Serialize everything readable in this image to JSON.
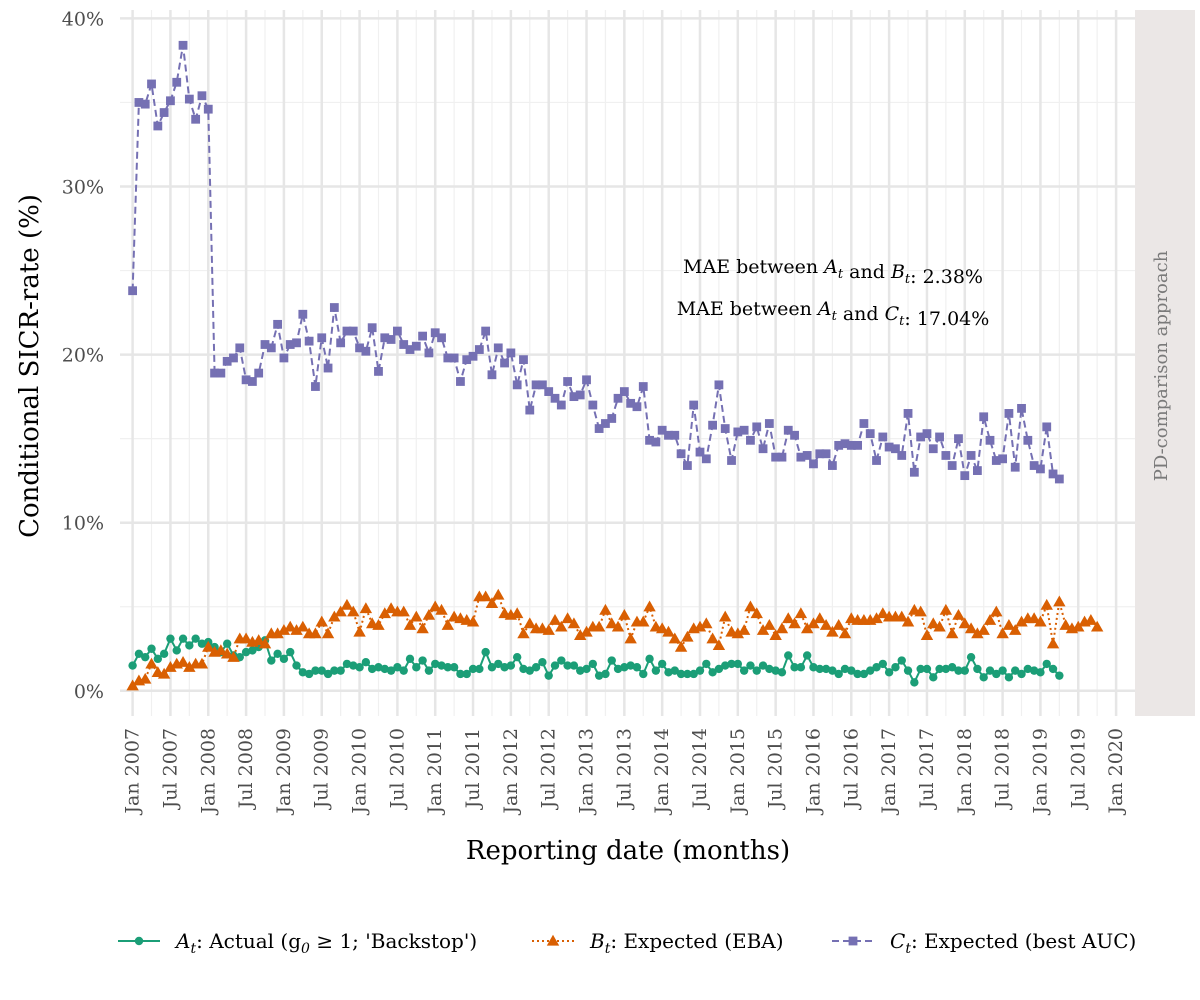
{
  "chart_data": {
    "type": "line",
    "facet_label": "PD-comparison approach",
    "xlabel": "Reporting date (months)",
    "ylabel": "Conditional SICR-rate (%)",
    "x_ticks": [
      "Jan 2007",
      "Jul 2007",
      "Jan 2008",
      "Jul 2008",
      "Jan 2009",
      "Jul 2009",
      "Jan 2010",
      "Jul 2010",
      "Jan 2011",
      "Jul 2011",
      "Jan 2012",
      "Jul 2012",
      "Jan 2013",
      "Jul 2013",
      "Jan 2014",
      "Jul 2014",
      "Jan 2015",
      "Jul 2015",
      "Jan 2016",
      "Jul 2016",
      "Jan 2017",
      "Jul 2017",
      "Jan 2018",
      "Jul 2018",
      "Jan 2019",
      "Jul 2019",
      "Jan 2020"
    ],
    "y_ticks": [
      "0%",
      "10%",
      "20%",
      "30%",
      "40%"
    ],
    "xlim": [
      "2006-11",
      "2020-04"
    ],
    "ylim": [
      -1.5,
      40.5
    ],
    "grid": true,
    "legend_position": "bottom",
    "start_month": "2007-01",
    "annotations": [
      {
        "line1_pre": "MAE between ",
        "var1": "A",
        "mid": " and ",
        "var2": "B",
        "post": ": 2.38%"
      },
      {
        "line1_pre": "MAE between ",
        "var1": "A",
        "mid": " and ",
        "var2": "C",
        "post": ": 17.04%"
      }
    ],
    "series": [
      {
        "name": "Actual",
        "legend_var": "A",
        "legend_text": ": Actual (g",
        "legend_tail": " ≥ 1; 'Backstop')",
        "color": "#1B9E77",
        "marker": "circle",
        "dash": "solid",
        "values": [
          1.5,
          2.2,
          2.0,
          2.5,
          1.9,
          2.2,
          3.1,
          2.4,
          3.1,
          2.7,
          3.1,
          2.8,
          2.9,
          2.6,
          2.3,
          2.8,
          2.1,
          2.0,
          2.3,
          2.4,
          2.6,
          3.0,
          1.8,
          2.2,
          1.9,
          2.3,
          1.5,
          1.1,
          1.0,
          1.2,
          1.2,
          1.0,
          1.2,
          1.2,
          1.6,
          1.5,
          1.4,
          1.7,
          1.3,
          1.4,
          1.3,
          1.2,
          1.4,
          1.2,
          1.9,
          1.4,
          1.8,
          1.2,
          1.6,
          1.5,
          1.4,
          1.4,
          1.0,
          1.0,
          1.3,
          1.3,
          2.3,
          1.4,
          1.6,
          1.4,
          1.5,
          2.0,
          1.3,
          1.2,
          1.4,
          1.7,
          0.9,
          1.5,
          1.8,
          1.5,
          1.5,
          1.2,
          1.3,
          1.6,
          0.9,
          1.0,
          1.8,
          1.3,
          1.4,
          1.5,
          1.4,
          1.0,
          1.9,
          1.2,
          1.6,
          1.1,
          1.2,
          1.0,
          1.0,
          1.0,
          1.2,
          1.6,
          1.1,
          1.3,
          1.5,
          1.6,
          1.6,
          1.2,
          1.5,
          1.2,
          1.5,
          1.3,
          1.2,
          1.1,
          2.1,
          1.4,
          1.4,
          2.1,
          1.4,
          1.3,
          1.3,
          1.2,
          1.0,
          1.3,
          1.2,
          1.0,
          1.0,
          1.2,
          1.4,
          1.6,
          1.1,
          1.4,
          1.8,
          1.2,
          0.5,
          1.3,
          1.3,
          0.8,
          1.3,
          1.3,
          1.4,
          1.2,
          1.2,
          2.0,
          1.3,
          0.8,
          1.2,
          1.0,
          1.2,
          0.8,
          1.2,
          1.0,
          1.3,
          1.2,
          1.1,
          1.6,
          1.3,
          0.9
        ]
      },
      {
        "name": "Expected (EBA)",
        "legend_var": "B",
        "legend_text": ": Expected (EBA)",
        "legend_tail": "",
        "color": "#D95F02",
        "marker": "triangle",
        "dash": "dotted",
        "values": [
          0.3,
          0.6,
          0.7,
          1.6,
          1.1,
          1.0,
          1.4,
          1.6,
          1.7,
          1.4,
          1.6,
          1.6,
          2.6,
          2.3,
          2.4,
          2.2,
          2.0,
          3.1,
          3.1,
          2.9,
          3.0,
          2.8,
          3.4,
          3.4,
          3.6,
          3.8,
          3.6,
          3.8,
          3.4,
          3.4,
          4.1,
          3.4,
          4.4,
          4.7,
          5.1,
          4.7,
          3.5,
          4.9,
          4.0,
          3.9,
          4.6,
          4.9,
          4.7,
          4.7,
          3.9,
          4.4,
          3.7,
          4.5,
          5.0,
          4.8,
          3.9,
          4.4,
          4.3,
          4.2,
          4.1,
          5.6,
          5.6,
          5.2,
          5.7,
          4.6,
          4.5,
          4.6,
          3.4,
          4.0,
          3.7,
          3.7,
          3.6,
          4.2,
          3.8,
          4.3,
          4.0,
          3.3,
          3.5,
          3.8,
          3.8,
          4.8,
          4.0,
          3.8,
          4.5,
          3.1,
          4.1,
          4.1,
          5.0,
          3.8,
          3.7,
          3.5,
          3.1,
          2.6,
          3.2,
          3.7,
          3.8,
          4.0,
          3.1,
          2.7,
          4.4,
          3.5,
          3.4,
          3.6,
          5.0,
          4.6,
          3.6,
          3.9,
          3.3,
          3.7,
          4.3,
          4.0,
          4.6,
          3.7,
          4.0,
          4.3,
          3.9,
          3.5,
          3.9,
          3.4,
          4.3,
          4.2,
          4.2,
          4.2,
          4.3,
          4.6,
          4.4,
          4.4,
          4.4,
          4.1,
          4.8,
          4.7,
          3.3,
          4.0,
          3.8,
          4.8,
          3.4,
          4.5,
          4.0,
          3.7,
          3.4,
          3.6,
          4.2,
          4.7,
          3.4,
          3.9,
          3.6,
          4.1,
          4.3,
          4.3,
          4.1,
          5.1,
          2.8,
          5.3,
          3.9,
          3.7,
          3.8,
          4.1,
          4.2,
          3.8
        ]
      },
      {
        "name": "Expected (best AUC)",
        "legend_var": "C",
        "legend_text": ": Expected (best AUC)",
        "legend_tail": "",
        "color": "#7570B3",
        "marker": "square",
        "dash": "dashed",
        "values": [
          23.8,
          35.0,
          34.9,
          36.1,
          33.6,
          34.4,
          35.1,
          36.2,
          38.4,
          35.2,
          34.0,
          35.4,
          34.6,
          18.9,
          18.9,
          19.6,
          19.8,
          20.4,
          18.5,
          18.4,
          18.9,
          20.6,
          20.4,
          21.8,
          19.8,
          20.6,
          20.7,
          22.4,
          20.8,
          18.1,
          21.0,
          19.2,
          22.8,
          20.7,
          21.4,
          21.4,
          20.4,
          20.2,
          21.6,
          19.0,
          21.0,
          20.9,
          21.4,
          20.6,
          20.3,
          20.5,
          21.1,
          20.1,
          21.3,
          21.0,
          19.8,
          19.8,
          18.4,
          19.7,
          19.9,
          20.3,
          21.4,
          18.8,
          20.4,
          19.5,
          20.1,
          18.2,
          19.7,
          16.7,
          18.2,
          18.2,
          17.8,
          17.4,
          17.0,
          18.4,
          17.5,
          17.6,
          18.5,
          17.0,
          15.6,
          15.9,
          16.2,
          17.4,
          17.8,
          17.1,
          16.9,
          18.1,
          14.9,
          14.8,
          15.5,
          15.2,
          15.2,
          14.1,
          13.4,
          17.0,
          14.2,
          13.8,
          15.8,
          18.2,
          15.6,
          13.7,
          15.4,
          15.5,
          14.9,
          15.7,
          14.4,
          15.9,
          13.9,
          13.9,
          15.5,
          15.2,
          13.9,
          14.0,
          13.5,
          14.1,
          14.1,
          13.4,
          14.6,
          14.7,
          14.6,
          14.6,
          15.9,
          15.3,
          13.7,
          15.1,
          14.5,
          14.4,
          14.0,
          16.5,
          13.0,
          15.1,
          15.3,
          14.4,
          15.1,
          14.0,
          13.4,
          15.0,
          12.8,
          14.0,
          13.1,
          16.3,
          14.9,
          13.7,
          13.8,
          16.5,
          13.3,
          16.8,
          14.9,
          13.4,
          13.2,
          15.7,
          12.9,
          12.6
        ]
      }
    ]
  }
}
